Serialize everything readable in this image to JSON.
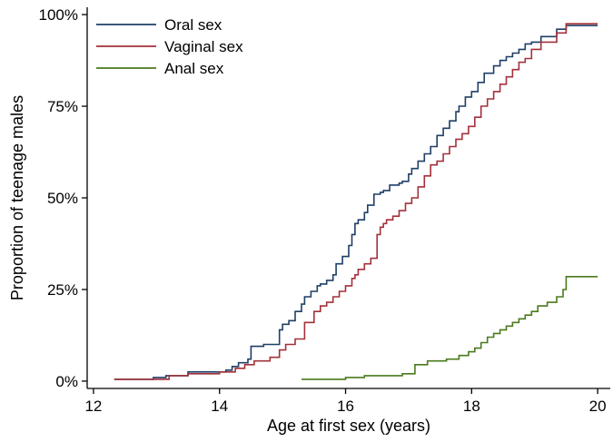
{
  "colors": {
    "oral": "#1f3f66",
    "vaginal": "#a3303a",
    "anal": "#4a7a1c",
    "axis": "#000000",
    "background": "#ffffff"
  },
  "chart_data": {
    "type": "line",
    "step": true,
    "title": "",
    "xlabel": "Age at first sex (years)",
    "ylabel": "Proportion of teenage males",
    "xlim": [
      11.9,
      20.2
    ],
    "ylim": [
      -0.02,
      1.02
    ],
    "xticks": [
      12,
      14,
      16,
      18,
      20
    ],
    "xtick_labels": [
      "12",
      "14",
      "16",
      "18",
      "20"
    ],
    "yticks": [
      0,
      0.25,
      0.5,
      0.75,
      1.0
    ],
    "ytick_labels": [
      "0%",
      "25%",
      "50%",
      "75%",
      "100%"
    ],
    "grid": false,
    "legend_position": "top-left",
    "series": [
      {
        "name": "Oral sex",
        "color_key": "oral",
        "x": [
          12.33,
          12.95,
          13.15,
          13.5,
          14.1,
          14.2,
          14.3,
          14.45,
          14.5,
          14.7,
          14.95,
          15.0,
          15.1,
          15.2,
          15.3,
          15.35,
          15.45,
          15.55,
          15.6,
          15.7,
          15.8,
          15.85,
          15.95,
          16.05,
          16.1,
          16.15,
          16.2,
          16.3,
          16.35,
          16.45,
          16.55,
          16.6,
          16.7,
          16.85,
          16.9,
          17.0,
          17.05,
          17.15,
          17.25,
          17.35,
          17.45,
          17.55,
          17.65,
          17.75,
          17.8,
          17.9,
          18.0,
          18.1,
          18.2,
          18.35,
          18.45,
          18.55,
          18.65,
          18.75,
          18.85,
          18.95,
          19.1,
          19.35,
          19.5,
          20.0
        ],
        "y": [
          0.005,
          0.01,
          0.015,
          0.025,
          0.03,
          0.04,
          0.05,
          0.06,
          0.095,
          0.1,
          0.14,
          0.155,
          0.165,
          0.19,
          0.21,
          0.23,
          0.245,
          0.26,
          0.265,
          0.275,
          0.29,
          0.32,
          0.34,
          0.37,
          0.4,
          0.43,
          0.44,
          0.46,
          0.48,
          0.51,
          0.515,
          0.52,
          0.535,
          0.54,
          0.545,
          0.565,
          0.58,
          0.6,
          0.62,
          0.64,
          0.67,
          0.69,
          0.71,
          0.735,
          0.75,
          0.775,
          0.79,
          0.815,
          0.84,
          0.86,
          0.875,
          0.885,
          0.895,
          0.905,
          0.92,
          0.925,
          0.94,
          0.96,
          0.97,
          0.97
        ]
      },
      {
        "name": "Vaginal sex",
        "color_key": "vaginal",
        "x": [
          12.33,
          13.2,
          13.5,
          14.0,
          14.25,
          14.4,
          14.55,
          14.8,
          14.95,
          15.05,
          15.2,
          15.35,
          15.5,
          15.6,
          15.7,
          15.8,
          15.9,
          16.0,
          16.1,
          16.15,
          16.2,
          16.3,
          16.4,
          16.5,
          16.55,
          16.6,
          16.65,
          16.75,
          16.85,
          16.95,
          17.05,
          17.15,
          17.25,
          17.35,
          17.45,
          17.55,
          17.65,
          17.75,
          17.85,
          17.95,
          18.05,
          18.15,
          18.25,
          18.35,
          18.45,
          18.55,
          18.65,
          18.75,
          18.85,
          18.95,
          19.1,
          19.35,
          19.5,
          20.0
        ],
        "y": [
          0.005,
          0.015,
          0.02,
          0.025,
          0.035,
          0.045,
          0.055,
          0.065,
          0.085,
          0.1,
          0.115,
          0.16,
          0.19,
          0.205,
          0.215,
          0.23,
          0.245,
          0.26,
          0.28,
          0.29,
          0.305,
          0.32,
          0.335,
          0.4,
          0.42,
          0.43,
          0.44,
          0.45,
          0.465,
          0.485,
          0.5,
          0.53,
          0.56,
          0.59,
          0.6,
          0.62,
          0.64,
          0.66,
          0.675,
          0.695,
          0.72,
          0.75,
          0.77,
          0.79,
          0.81,
          0.83,
          0.85,
          0.87,
          0.88,
          0.905,
          0.925,
          0.95,
          0.975,
          0.975
        ]
      },
      {
        "name": "Anal sex",
        "color_key": "anal",
        "x": [
          15.3,
          16.0,
          16.3,
          16.9,
          17.1,
          17.3,
          17.6,
          17.8,
          17.95,
          18.05,
          18.15,
          18.25,
          18.35,
          18.45,
          18.55,
          18.65,
          18.75,
          18.85,
          18.95,
          19.05,
          19.2,
          19.35,
          19.45,
          19.5,
          20.0
        ],
        "y": [
          0.005,
          0.01,
          0.015,
          0.02,
          0.045,
          0.055,
          0.06,
          0.07,
          0.08,
          0.09,
          0.105,
          0.12,
          0.13,
          0.14,
          0.15,
          0.16,
          0.17,
          0.18,
          0.19,
          0.205,
          0.215,
          0.23,
          0.25,
          0.285,
          0.285
        ]
      }
    ]
  }
}
